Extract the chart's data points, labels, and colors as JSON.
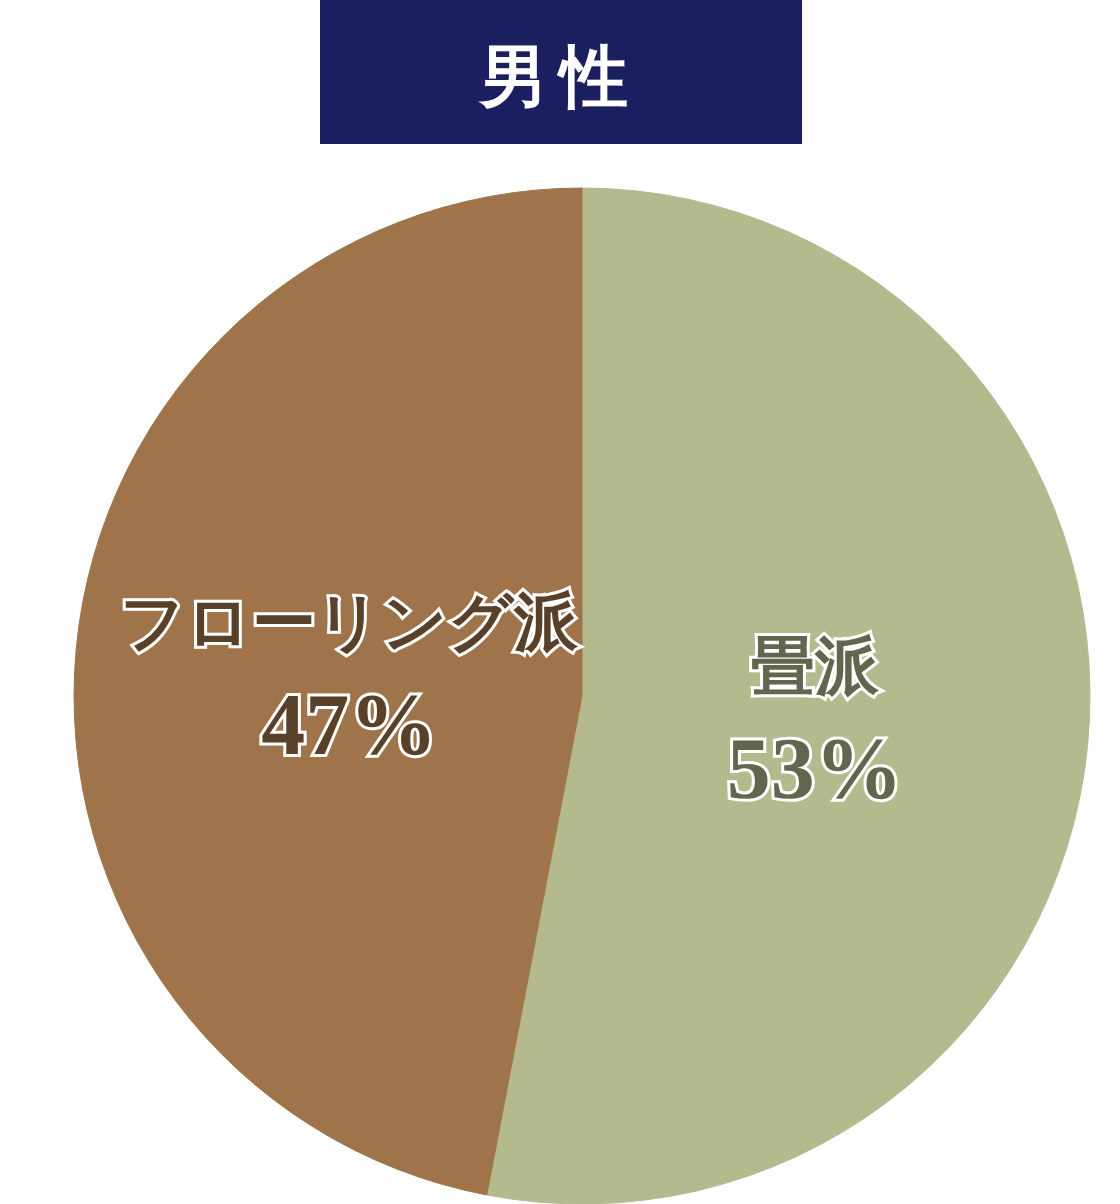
{
  "chart_data": {
    "type": "pie",
    "title": "男性",
    "categories": [
      "畳派",
      "フローリング派"
    ],
    "values": [
      53,
      47
    ],
    "colors": [
      "#b4ba8e",
      "#a0744a"
    ],
    "value_labels": [
      "53%",
      "47%"
    ]
  }
}
